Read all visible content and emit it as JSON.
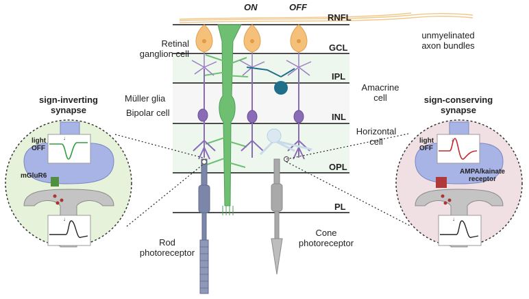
{
  "layers": {
    "rnfl": "RNFL",
    "gcl": "GCL",
    "ipl": "IPL",
    "inl": "INL",
    "opl": "OPL",
    "pl": "PL"
  },
  "pathways": {
    "on": "ON",
    "off": "OFF"
  },
  "labels": {
    "retinal_ganglion_1": "Retinal",
    "retinal_ganglion_2": "ganglion cell",
    "muller_glia": "Müller glia",
    "bipolar_cell": "Bipolar cell",
    "amacrine_1": "Amacrine",
    "amacrine_2": "cell",
    "horizontal_1": "Horizontal",
    "horizontal_2": "cell",
    "axon_1": "unmyelinated",
    "axon_2": "axon bundles",
    "rod_1": "Rod",
    "rod_2": "photoreceptor",
    "cone_1": "Cone",
    "cone_2": "photoreceptor"
  },
  "left_inset": {
    "title_1": "sign-inverting",
    "title_2": "synapse",
    "light_1": "light",
    "light_2": "OFF",
    "receptor": "mGluR6"
  },
  "right_inset": {
    "title_1": "sign-conserving",
    "title_2": "synapse",
    "light_1": "light",
    "light_2": "OFF",
    "receptor_1": "AMPA/kainate",
    "receptor_2": "receptor"
  },
  "colors": {
    "ganglion": "#f4c07a",
    "muller": "#6fbf73",
    "bipolar": "#8a6bb5",
    "amacrine": "#1f6f8b",
    "rod": "#7c86a8",
    "cone": "#a9a9a9",
    "left_bg": "#e6f2d9",
    "right_bg": "#f0e0e3"
  }
}
